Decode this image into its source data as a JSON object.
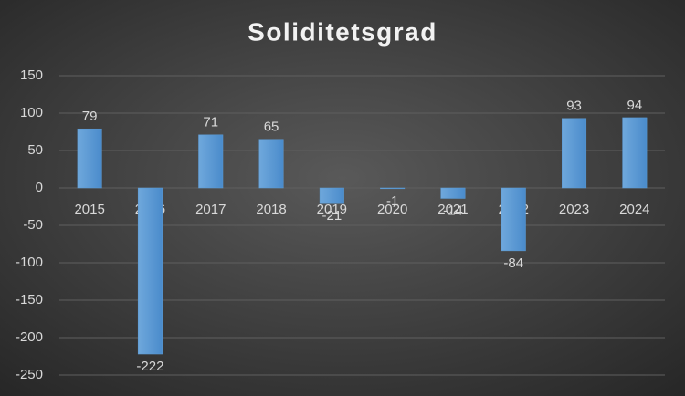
{
  "chart_data": {
    "type": "bar",
    "title": "Soliditetsgrad",
    "categories": [
      "2015",
      "2016",
      "2017",
      "2018",
      "2019",
      "2020",
      "2021",
      "2022",
      "2023",
      "2024"
    ],
    "values": [
      79,
      -222,
      71,
      65,
      -21,
      -1,
      -14,
      -84,
      93,
      94
    ],
    "color": "#5b9bd5",
    "ylim": [
      -250,
      150
    ],
    "yticks": [
      -250,
      -200,
      -150,
      -100,
      -50,
      0,
      50,
      100,
      150
    ],
    "grid": true
  }
}
